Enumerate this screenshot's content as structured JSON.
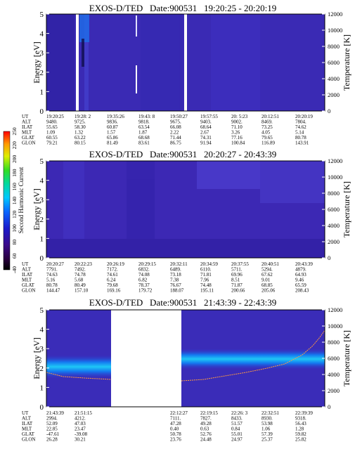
{
  "colorbar": {
    "label": "Second Harmonic Current",
    "ticks": [
      "-40",
      "60",
      "80",
      "100",
      "120",
      "140",
      "160",
      "180",
      "200",
      "220",
      "250"
    ]
  },
  "panel_labels": [
    "UT",
    "ALT",
    "ILAT",
    "MLT",
    "GLAT",
    "GLON"
  ],
  "chart_data": [
    {
      "type": "heatmap",
      "title": "EXOS-D/TED   Date:900531   19:20:25 - 20:20:19",
      "ylabel": "Energy [eV]",
      "y2label": "Temperature [K]",
      "ylim": [
        0,
        5
      ],
      "y2lim": [
        0,
        12000
      ],
      "yticks": [
        "0",
        "1",
        "2",
        "3",
        "4",
        "5"
      ],
      "y2ticks": [
        "0",
        "2000",
        "4000",
        "6000",
        "8000",
        "10000",
        "12000"
      ],
      "ephemeris": [
        [
          "19:20:25",
          "9480.",
          "55.65",
          "1.09",
          "60.55",
          "79.21"
        ],
        [
          "19:28: 2",
          "9725.",
          "58.30",
          "1.32",
          "63.22",
          "80.15"
        ],
        [
          "19:35:26",
          "9836.",
          "60.87",
          "1.57",
          "65.86",
          "81.49"
        ],
        [
          "19:43: 8",
          "9818.",
          "63.54",
          "1.87",
          "68.68",
          "83.61"
        ],
        [
          "19:50:27",
          "9675.",
          "66.08",
          "2.22",
          "71.44",
          "86.75"
        ],
        [
          "19:57:55",
          "9403.",
          "68.64",
          "2.67",
          "74.31",
          "91.94"
        ],
        [
          "20: 5:23",
          "9002.",
          "71.10",
          "3.26",
          "77.16",
          "100.84"
        ],
        [
          "20:12:51",
          "8469.",
          "73.25",
          "4.05",
          "79.65",
          "116.89"
        ],
        [
          "20:20:19",
          "7804.",
          "74.62",
          "5.14",
          "80.78",
          "143.91"
        ]
      ]
    },
    {
      "type": "heatmap",
      "title": "EXOS-D/TED   Date:900531   20:20:27 - 20:43:39",
      "ylabel": "Energy [eV]",
      "y2label": "Temperature [K]",
      "ylim": [
        0,
        5
      ],
      "y2lim": [
        0,
        12000
      ],
      "yticks": [
        "0",
        "1",
        "2",
        "3",
        "4",
        "5"
      ],
      "y2ticks": [
        "0",
        "2000",
        "4000",
        "6000",
        "8000",
        "10000",
        "12000"
      ],
      "ephemeris": [
        [
          "20:20:27",
          "7791.",
          "74.63",
          "5.16",
          "80.78",
          "144.47"
        ],
        [
          "20:22:23",
          "7492.",
          "74.78",
          "5.68",
          "80.49",
          "157.10"
        ],
        [
          "20:26:19",
          "7172.",
          "74.61",
          "6.24",
          "79.68",
          "169.16"
        ],
        [
          "20:29:15",
          "6832.",
          "74.08",
          "6.82",
          "78.37",
          "179.72"
        ],
        [
          "20:32:11",
          "6489.",
          "73.18",
          "7.38",
          "76.67",
          "188.07"
        ],
        [
          "20:34:59",
          "6110.",
          "71.81",
          "7.96",
          "74.48",
          "195.11"
        ],
        [
          "20:37:55",
          "5711.",
          "69.96",
          "8.51",
          "71.87",
          "200.66"
        ],
        [
          "20:40:51",
          "5294.",
          "67.62",
          "9.01",
          "68.85",
          "205.06"
        ],
        [
          "20:43:39",
          "4879.",
          "64.93",
          "9.46",
          "65.59",
          "208.43"
        ]
      ]
    },
    {
      "type": "heatmap",
      "title": "EXOS-D/TED   Date:900531   21:43:39 - 22:43:39",
      "ylabel": "Energy [eV]",
      "y2label": "Temperature [K]",
      "ylim": [
        0,
        5
      ],
      "y2lim": [
        0,
        12000
      ],
      "yticks": [
        "0",
        "1",
        "2",
        "3",
        "4",
        "5"
      ],
      "y2ticks": [
        "0",
        "2000",
        "4000",
        "6000",
        "8000",
        "10000",
        "12000"
      ],
      "ephemeris": [
        [
          "21:43:39",
          "2994.",
          "52.09",
          "22.85",
          "-47.61",
          "26.28"
        ],
        [
          "21:51:15",
          "4212.",
          "47.03",
          "23.47",
          "-39.08",
          "30.21"
        ],
        [
          "",
          "",
          "",
          "",
          "",
          ""
        ],
        [
          "",
          "",
          "",
          "",
          "",
          ""
        ],
        [
          "22:12:27",
          "7111.",
          "47.28",
          "0.40",
          "50.78",
          "23.76"
        ],
        [
          "22:19:15",
          "7827.",
          "49.28",
          "0.63",
          "52.76",
          "24.48"
        ],
        [
          "22:26: 3",
          "8433.",
          "51.57",
          "0.84",
          "55.01",
          "24.97"
        ],
        [
          "22:32:51",
          "8930.",
          "53.98",
          "1.06",
          "57.39",
          "25.37"
        ],
        [
          "22:39:39",
          "9318.",
          "56.43",
          "1.28",
          "59.82",
          "25.82"
        ]
      ]
    }
  ]
}
